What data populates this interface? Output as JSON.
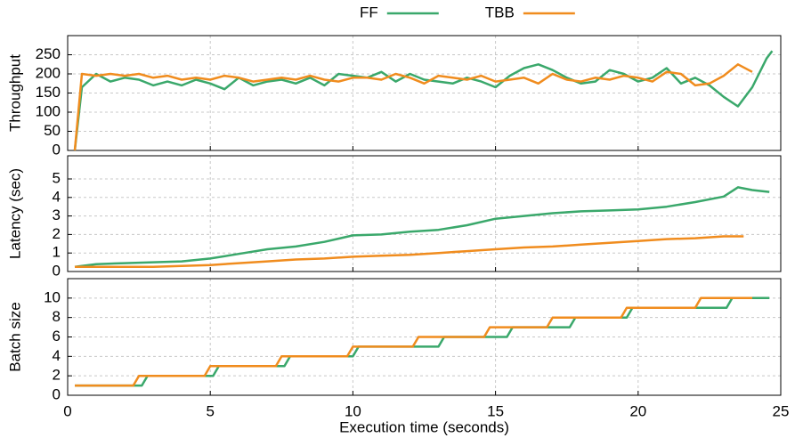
{
  "chart_data": [
    {
      "type": "line",
      "ylabel": "Throughput",
      "ylim": [
        0,
        300
      ],
      "yticks": [
        0,
        50,
        100,
        150,
        200,
        250
      ],
      "series": [
        {
          "name": "FF",
          "color": "#3aa86b",
          "x": [
            0.25,
            0.5,
            1,
            1.5,
            2,
            2.5,
            3,
            3.5,
            4,
            4.5,
            5,
            5.5,
            6,
            6.5,
            7,
            7.5,
            8,
            8.5,
            9,
            9.5,
            10,
            10.5,
            11,
            11.5,
            12,
            12.5,
            13,
            13.5,
            14,
            14.5,
            15,
            15.5,
            16,
            16.5,
            17,
            17.5,
            18,
            18.5,
            19,
            19.5,
            20,
            20.5,
            21,
            21.5,
            22,
            22.5,
            23,
            23.5,
            24,
            24.5,
            24.7
          ],
          "values": [
            0,
            165,
            200,
            180,
            190,
            185,
            170,
            180,
            170,
            185,
            175,
            160,
            190,
            170,
            180,
            185,
            175,
            190,
            170,
            200,
            195,
            190,
            205,
            180,
            200,
            185,
            180,
            175,
            190,
            180,
            165,
            195,
            215,
            225,
            210,
            190,
            175,
            180,
            210,
            200,
            180,
            190,
            215,
            175,
            190,
            170,
            140,
            115,
            165,
            240,
            260
          ]
        },
        {
          "name": "TBB",
          "color": "#f08c1e",
          "x": [
            0.25,
            0.5,
            1,
            1.5,
            2,
            2.5,
            3,
            3.5,
            4,
            4.5,
            5,
            5.5,
            6,
            6.5,
            7,
            7.5,
            8,
            8.5,
            9,
            9.5,
            10,
            10.5,
            11,
            11.5,
            12,
            12.5,
            13,
            13.5,
            14,
            14.5,
            15,
            15.5,
            16,
            16.5,
            17,
            17.5,
            18,
            18.5,
            19,
            19.5,
            20,
            20.5,
            21,
            21.5,
            22,
            22.5,
            23,
            23.5,
            24
          ],
          "values": [
            0,
            200,
            195,
            200,
            195,
            200,
            190,
            195,
            185,
            190,
            185,
            195,
            190,
            180,
            185,
            190,
            185,
            195,
            185,
            180,
            190,
            190,
            185,
            200,
            190,
            175,
            195,
            190,
            185,
            195,
            180,
            185,
            190,
            175,
            200,
            185,
            180,
            190,
            185,
            195,
            190,
            180,
            205,
            200,
            170,
            175,
            195,
            225,
            205
          ]
        }
      ]
    },
    {
      "type": "line",
      "ylabel": "Latency (sec)",
      "ylim": [
        0,
        6.25
      ],
      "yticks": [
        0,
        1,
        2,
        3,
        4,
        5
      ],
      "series": [
        {
          "color": "#3aa86b",
          "x": [
            0.25,
            1,
            2,
            3,
            4,
            5,
            6,
            7,
            8,
            9,
            10,
            11,
            12,
            13,
            14,
            15,
            16,
            17,
            18,
            19,
            20,
            21,
            22,
            23,
            23.5,
            24,
            24.6
          ],
          "values": [
            0.25,
            0.4,
            0.45,
            0.5,
            0.55,
            0.7,
            0.95,
            1.2,
            1.35,
            1.6,
            1.95,
            2.0,
            2.15,
            2.25,
            2.5,
            2.85,
            3.0,
            3.15,
            3.25,
            3.3,
            3.35,
            3.5,
            3.75,
            4.05,
            4.55,
            4.4,
            4.3
          ]
        },
        {
          "color": "#f08c1e",
          "x": [
            0.25,
            1,
            2,
            3,
            4,
            5,
            6,
            7,
            8,
            9,
            10,
            11,
            12,
            13,
            14,
            15,
            16,
            17,
            18,
            19,
            20,
            21,
            22,
            23,
            23.7
          ],
          "values": [
            0.25,
            0.25,
            0.25,
            0.25,
            0.3,
            0.35,
            0.45,
            0.55,
            0.65,
            0.7,
            0.8,
            0.85,
            0.9,
            1.0,
            1.1,
            1.2,
            1.3,
            1.35,
            1.45,
            1.55,
            1.65,
            1.75,
            1.8,
            1.9,
            1.9
          ]
        }
      ]
    },
    {
      "type": "line",
      "ylabel": "Batch size",
      "xlabel": "Execution time (seconds)",
      "xlim": [
        0,
        25
      ],
      "xticks": [
        0,
        5,
        10,
        15,
        20,
        25
      ],
      "ylim": [
        0,
        12
      ],
      "yticks": [
        0,
        2,
        4,
        6,
        8,
        10
      ],
      "series": [
        {
          "color": "#3aa86b",
          "x": [
            0.25,
            2.6,
            2.8,
            5.1,
            5.3,
            7.6,
            7.8,
            10.0,
            10.2,
            13.0,
            13.2,
            15.4,
            15.6,
            17.6,
            17.8,
            19.6,
            19.8,
            23.1,
            23.3,
            24.6
          ],
          "values": [
            1,
            1,
            2,
            2,
            3,
            3,
            4,
            4,
            5,
            5,
            6,
            6,
            7,
            7,
            8,
            8,
            9,
            9,
            10,
            10
          ]
        },
        {
          "color": "#f08c1e",
          "x": [
            0.25,
            2.3,
            2.5,
            4.8,
            5.0,
            7.3,
            7.5,
            9.8,
            10.0,
            12.1,
            12.3,
            14.6,
            14.8,
            16.8,
            17.0,
            19.4,
            19.6,
            22.0,
            22.2,
            24.0
          ],
          "values": [
            1,
            1,
            2,
            2,
            3,
            3,
            4,
            4,
            5,
            5,
            6,
            6,
            7,
            7,
            8,
            8,
            9,
            9,
            10,
            10
          ]
        }
      ]
    }
  ]
}
